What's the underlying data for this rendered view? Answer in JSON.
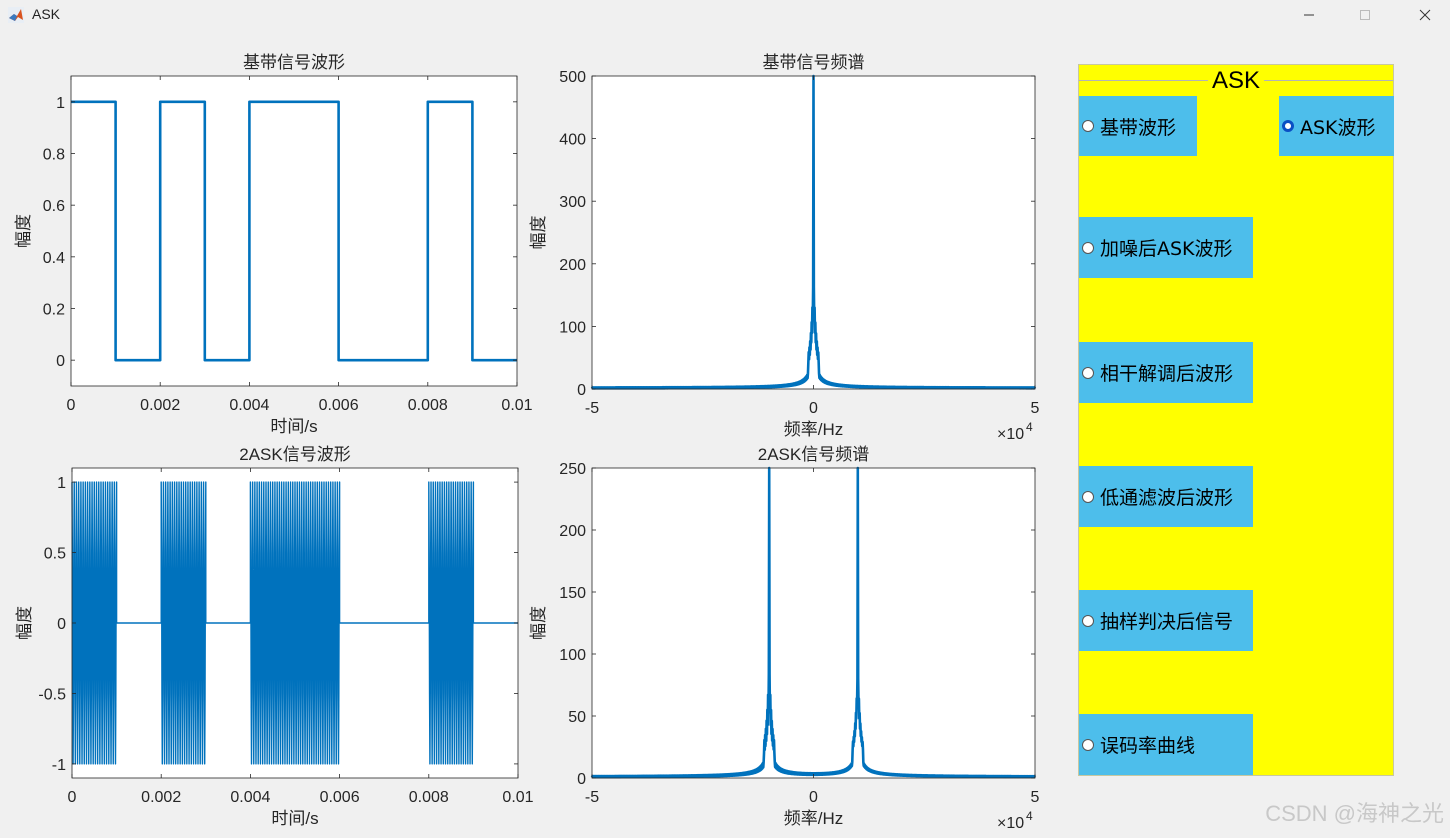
{
  "window": {
    "title": "ASK",
    "icon": "matlab-icon",
    "controls": [
      "minimize-icon",
      "maximize-icon",
      "close-icon"
    ]
  },
  "panel": {
    "title": "ASK",
    "background": "#ffff00",
    "button_color": "#4dbeeb",
    "options": [
      {
        "label": "基带波形",
        "selected": false
      },
      {
        "label": "ASK波形",
        "selected": true
      },
      {
        "label": "加噪后ASK波形",
        "selected": false
      },
      {
        "label": "相干解调后波形",
        "selected": false
      },
      {
        "label": "低通滤波后波形",
        "selected": false
      },
      {
        "label": "抽样判决后信号",
        "selected": false
      },
      {
        "label": "误码率曲线",
        "selected": false
      }
    ]
  },
  "watermark": "CSDN @海神之光",
  "line_color": "#0072bd",
  "chart_data": [
    {
      "type": "line",
      "title": "基带信号波形",
      "xlabel": "时间/s",
      "ylabel": "幅度",
      "xlim": [
        0,
        0.01
      ],
      "ylim": [
        -0.1,
        1.1
      ],
      "xticks": [
        0,
        0.002,
        0.004,
        0.006,
        0.008,
        0.01
      ],
      "xtick_labels": [
        "0",
        "0.002",
        "0.004",
        "0.006",
        "0.008",
        "0.01"
      ],
      "yticks": [
        0,
        0.2,
        0.4,
        0.6,
        0.8,
        1
      ],
      "ytick_labels": [
        "0",
        "0.2",
        "0.4",
        "0.6",
        "0.8",
        "1"
      ],
      "bits": [
        1,
        0,
        1,
        0,
        1,
        1,
        0,
        0,
        1,
        0
      ],
      "bit_duration": 0.001
    },
    {
      "type": "line",
      "title": "基带信号频谱",
      "xlabel": "频率/Hz",
      "ylabel": "幅度",
      "exponent_label": "×10",
      "exponent": "4",
      "xlim": [
        -5,
        5
      ],
      "ylim": [
        0,
        500
      ],
      "xticks": [
        -5,
        0,
        5
      ],
      "xtick_labels": [
        "-5",
        "0",
        "5"
      ],
      "yticks": [
        0,
        100,
        200,
        300,
        400,
        500
      ],
      "ytick_labels": [
        "0",
        "100",
        "200",
        "300",
        "400",
        "500"
      ],
      "peak_centers": [
        0
      ],
      "peak_value": 500
    },
    {
      "type": "line",
      "title": "2ASK信号波形",
      "xlabel": "时间/s",
      "ylabel": "幅度",
      "xlim": [
        0,
        0.01
      ],
      "ylim": [
        -1.1,
        1.1
      ],
      "xticks": [
        0,
        0.002,
        0.004,
        0.006,
        0.008,
        0.01
      ],
      "xtick_labels": [
        "0",
        "0.002",
        "0.004",
        "0.006",
        "0.008",
        "0.01"
      ],
      "yticks": [
        -1,
        -0.5,
        0,
        0.5,
        1
      ],
      "ytick_labels": [
        "-1",
        "-0.5",
        "0",
        "0.5",
        "1"
      ],
      "bits": [
        1,
        0,
        1,
        0,
        1,
        1,
        0,
        0,
        1,
        0
      ],
      "bit_duration": 0.001,
      "carrier_cycles_per_bit": 20
    },
    {
      "type": "line",
      "title": "2ASK信号频谱",
      "xlabel": "频率/Hz",
      "ylabel": "幅度",
      "exponent_label": "×10",
      "exponent": "4",
      "xlim": [
        -5,
        5
      ],
      "ylim": [
        0,
        250
      ],
      "xticks": [
        -5,
        0,
        5
      ],
      "xtick_labels": [
        "-5",
        "0",
        "5"
      ],
      "yticks": [
        0,
        50,
        100,
        150,
        200,
        250
      ],
      "ytick_labels": [
        "0",
        "50",
        "100",
        "150",
        "200",
        "250"
      ],
      "peak_centers": [
        -1,
        1
      ],
      "peak_value": 250
    }
  ]
}
